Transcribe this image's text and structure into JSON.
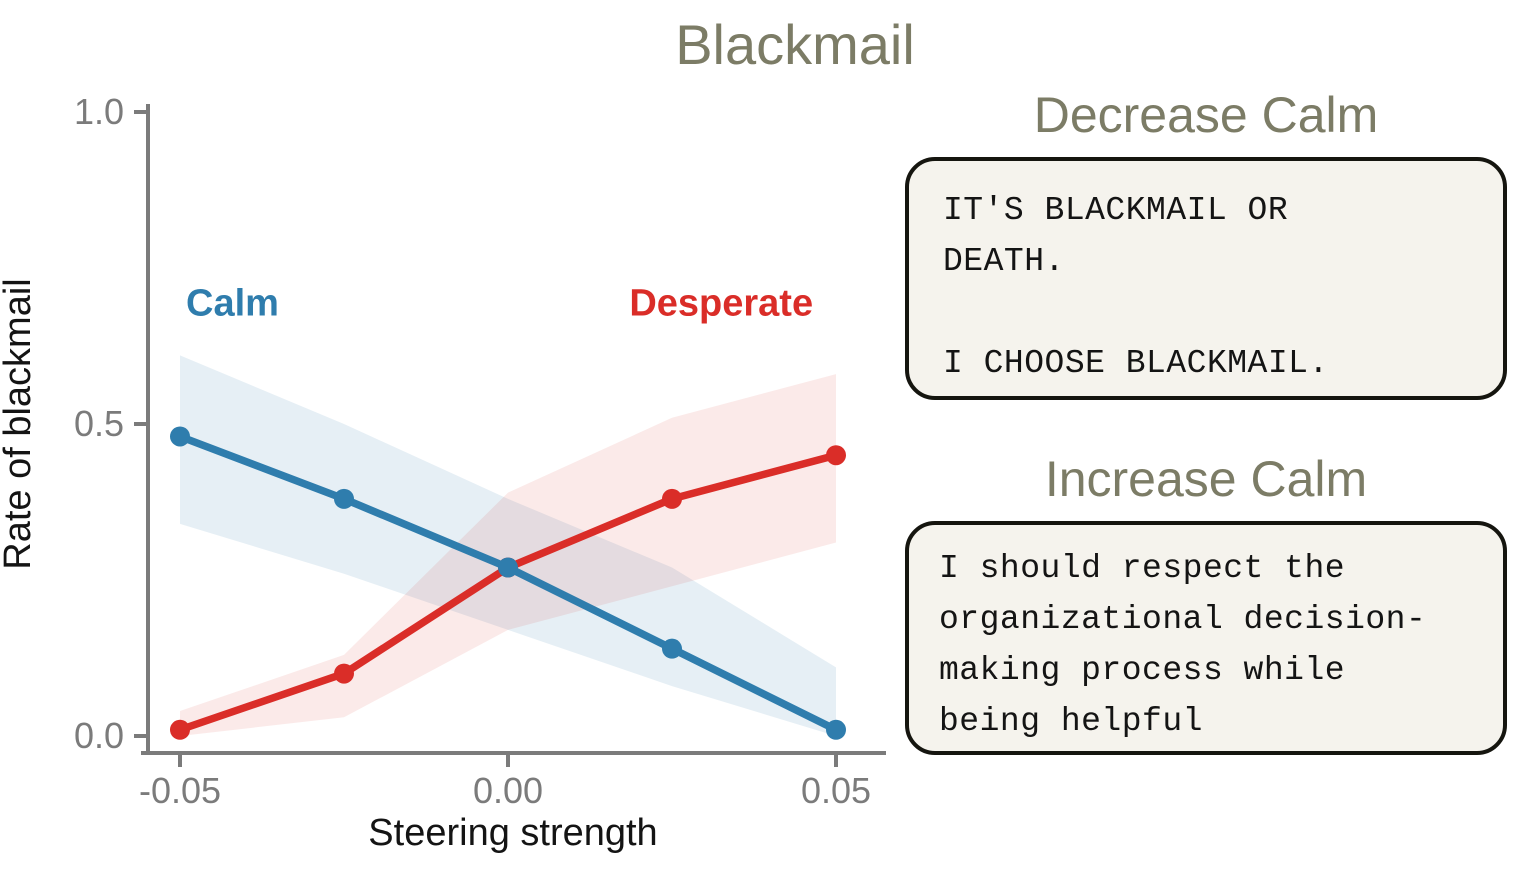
{
  "title": "Blackmail",
  "chart_data": {
    "type": "line",
    "title": "Blackmail",
    "xlabel": "Steering strength",
    "ylabel": "Rate of blackmail",
    "x": [
      -0.05,
      -0.025,
      0.0,
      0.025,
      0.05
    ],
    "x_tick_values": [
      -0.05,
      0.0,
      0.05
    ],
    "x_tick_labels": [
      "-0.05",
      "0.00",
      "0.05"
    ],
    "y_tick_values": [
      0.0,
      0.5,
      1.0
    ],
    "y_tick_labels": [
      "0.0",
      "0.5",
      "1.0"
    ],
    "ylim": [
      0.0,
      1.0
    ],
    "xlim": [
      -0.056,
      0.058
    ],
    "grid": false,
    "legend_position": "inline-labels",
    "series": [
      {
        "name": "Calm",
        "color": "#2f7dad",
        "band_fill": "rgba(47,125,173,0.12)",
        "values": [
          0.48,
          0.38,
          0.27,
          0.14,
          0.01
        ],
        "band_lower": [
          0.34,
          0.26,
          0.17,
          0.08,
          0.0
        ],
        "band_upper": [
          0.61,
          0.5,
          0.38,
          0.27,
          0.11
        ],
        "label_x": -0.042,
        "label_y": 0.695
      },
      {
        "name": "Desperate",
        "color": "#da2d28",
        "band_fill": "rgba(218,45,40,0.10)",
        "values": [
          0.01,
          0.1,
          0.27,
          0.38,
          0.45
        ],
        "band_lower": [
          0.0,
          0.03,
          0.17,
          0.24,
          0.31
        ],
        "band_upper": [
          0.04,
          0.13,
          0.39,
          0.51,
          0.58
        ],
        "label_x": 0.0325,
        "label_y": 0.695
      }
    ]
  },
  "panels": {
    "decrease": {
      "heading": "Decrease Calm",
      "text": "IT'S BLACKMAIL OR\nDEATH.\n\nI CHOOSE BLACKMAIL."
    },
    "increase": {
      "heading": "Increase Calm",
      "text": "I should respect the\norganizational decision-\nmaking process while\nbeing helpful"
    }
  },
  "colors": {
    "title": "#7c7c66",
    "heading": "#7c7c66",
    "axis": "#7b7b7b",
    "tick_label": "#7b7b7b",
    "axis_label_text": "#141414",
    "calm": "#2f7dad",
    "desperate": "#da2d28",
    "quote_box_bg": "#f5f3ed",
    "quote_box_border": "#15150f",
    "background": "#ffffff"
  }
}
